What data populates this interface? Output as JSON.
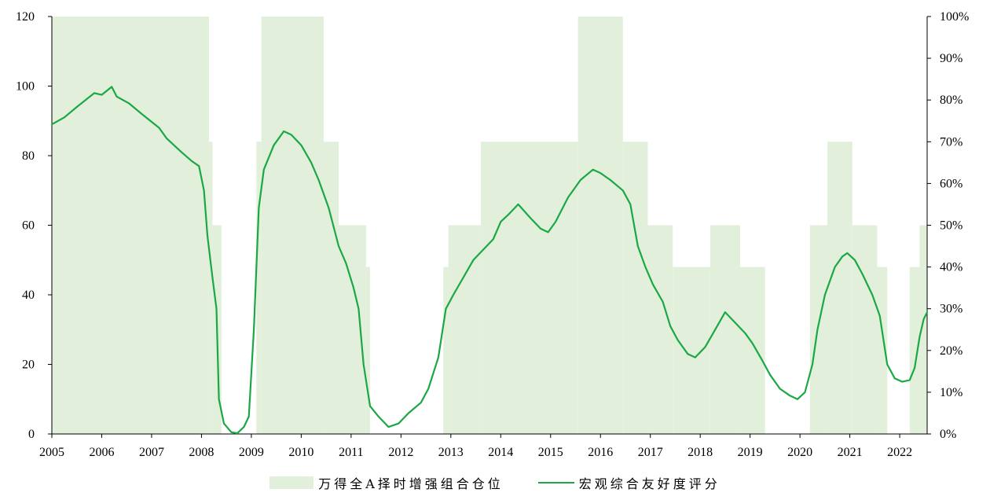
{
  "chart_data": {
    "type": "line",
    "x_ticks": [
      "2005",
      "2006",
      "2007",
      "2008",
      "2009",
      "2010",
      "2011",
      "2012",
      "2013",
      "2014",
      "2015",
      "2016",
      "2017",
      "2018",
      "2019",
      "2020",
      "2021",
      "2022"
    ],
    "y_left_ticks": [
      "0",
      "20",
      "40",
      "60",
      "80",
      "100",
      "120"
    ],
    "y_right_ticks": [
      "0%",
      "10%",
      "20%",
      "30%",
      "40%",
      "50%",
      "60%",
      "70%",
      "80%",
      "90%",
      "100%"
    ],
    "ylim_left": [
      0,
      120
    ],
    "ylim_right": [
      0,
      1
    ],
    "xlim": [
      2005.0,
      2022.55
    ],
    "legend_position": "bottom",
    "colors": {
      "position": "#e2f0db",
      "score": "#1aa845"
    },
    "series": [
      {
        "name": "万得全A择时增强组合仓位",
        "kind": "area-step",
        "axis": "right",
        "points": [
          [
            2005.0,
            1.0
          ],
          [
            2008.15,
            0.7
          ],
          [
            2008.22,
            0.5
          ],
          [
            2008.4,
            0.0
          ],
          [
            2009.1,
            0.7
          ],
          [
            2009.2,
            1.0
          ],
          [
            2010.45,
            0.7
          ],
          [
            2010.75,
            0.5
          ],
          [
            2011.3,
            0.4
          ],
          [
            2011.38,
            0.0
          ],
          [
            2012.85,
            0.4
          ],
          [
            2012.95,
            0.5
          ],
          [
            2013.6,
            0.7
          ],
          [
            2015.55,
            1.0
          ],
          [
            2016.45,
            0.7
          ],
          [
            2016.95,
            0.5
          ],
          [
            2017.45,
            0.4
          ],
          [
            2018.2,
            0.5
          ],
          [
            2018.8,
            0.4
          ],
          [
            2019.3,
            0.0
          ],
          [
            2020.2,
            0.5
          ],
          [
            2020.55,
            0.7
          ],
          [
            2021.05,
            0.5
          ],
          [
            2021.55,
            0.4
          ],
          [
            2021.75,
            0.0
          ],
          [
            2022.2,
            0.4
          ],
          [
            2022.4,
            0.5
          ],
          [
            2022.55,
            0.5
          ]
        ]
      },
      {
        "name": "宏观综合友好度评分",
        "kind": "line",
        "axis": "left",
        "points": [
          [
            2005.0,
            89
          ],
          [
            2005.25,
            91
          ],
          [
            2005.5,
            94
          ],
          [
            2005.85,
            98
          ],
          [
            2006.0,
            97.5
          ],
          [
            2006.2,
            99.8
          ],
          [
            2006.3,
            97
          ],
          [
            2006.55,
            95
          ],
          [
            2006.8,
            92
          ],
          [
            2007.15,
            88
          ],
          [
            2007.3,
            85
          ],
          [
            2007.6,
            81
          ],
          [
            2007.8,
            78.5
          ],
          [
            2007.95,
            77
          ],
          [
            2008.05,
            70
          ],
          [
            2008.12,
            57
          ],
          [
            2008.22,
            45
          ],
          [
            2008.3,
            36
          ],
          [
            2008.35,
            10
          ],
          [
            2008.45,
            3
          ],
          [
            2008.6,
            0.5
          ],
          [
            2008.72,
            0.2
          ],
          [
            2008.85,
            2
          ],
          [
            2008.95,
            5
          ],
          [
            2009.05,
            30
          ],
          [
            2009.15,
            65
          ],
          [
            2009.25,
            76
          ],
          [
            2009.45,
            83
          ],
          [
            2009.65,
            87
          ],
          [
            2009.8,
            86
          ],
          [
            2010.0,
            83
          ],
          [
            2010.2,
            78
          ],
          [
            2010.35,
            73
          ],
          [
            2010.55,
            65
          ],
          [
            2010.75,
            54
          ],
          [
            2010.9,
            49
          ],
          [
            2011.05,
            42
          ],
          [
            2011.15,
            36
          ],
          [
            2011.25,
            20
          ],
          [
            2011.38,
            8
          ],
          [
            2011.55,
            5
          ],
          [
            2011.75,
            2
          ],
          [
            2011.95,
            3
          ],
          [
            2012.15,
            6
          ],
          [
            2012.4,
            9
          ],
          [
            2012.55,
            13
          ],
          [
            2012.75,
            22
          ],
          [
            2012.9,
            36
          ],
          [
            2013.05,
            40
          ],
          [
            2013.25,
            45
          ],
          [
            2013.45,
            50
          ],
          [
            2013.65,
            53
          ],
          [
            2013.85,
            56
          ],
          [
            2014.0,
            61
          ],
          [
            2014.15,
            63
          ],
          [
            2014.35,
            66
          ],
          [
            2014.6,
            62
          ],
          [
            2014.8,
            59
          ],
          [
            2014.95,
            58
          ],
          [
            2015.1,
            61
          ],
          [
            2015.35,
            68
          ],
          [
            2015.6,
            73
          ],
          [
            2015.85,
            76
          ],
          [
            2016.0,
            75
          ],
          [
            2016.2,
            73
          ],
          [
            2016.45,
            70
          ],
          [
            2016.6,
            66
          ],
          [
            2016.75,
            54
          ],
          [
            2016.9,
            48
          ],
          [
            2017.05,
            43
          ],
          [
            2017.25,
            38
          ],
          [
            2017.4,
            31
          ],
          [
            2017.55,
            27
          ],
          [
            2017.75,
            23
          ],
          [
            2017.9,
            22
          ],
          [
            2018.1,
            25
          ],
          [
            2018.3,
            30
          ],
          [
            2018.5,
            35
          ],
          [
            2018.7,
            32
          ],
          [
            2018.9,
            29
          ],
          [
            2019.05,
            26
          ],
          [
            2019.25,
            21
          ],
          [
            2019.4,
            17
          ],
          [
            2019.6,
            13
          ],
          [
            2019.8,
            11
          ],
          [
            2019.95,
            10
          ],
          [
            2020.1,
            12
          ],
          [
            2020.25,
            20
          ],
          [
            2020.35,
            30
          ],
          [
            2020.5,
            40
          ],
          [
            2020.7,
            48
          ],
          [
            2020.85,
            51
          ],
          [
            2020.95,
            52
          ],
          [
            2021.1,
            50
          ],
          [
            2021.25,
            46
          ],
          [
            2021.45,
            40
          ],
          [
            2021.6,
            34
          ],
          [
            2021.75,
            20
          ],
          [
            2021.9,
            16
          ],
          [
            2022.05,
            15
          ],
          [
            2022.2,
            15.5
          ],
          [
            2022.3,
            19
          ],
          [
            2022.4,
            28
          ],
          [
            2022.48,
            33
          ],
          [
            2022.55,
            35
          ]
        ]
      }
    ]
  },
  "legend": {
    "area_label": "万得全A择时增强组合仓位",
    "line_label": "宏观综合友好度评分"
  }
}
